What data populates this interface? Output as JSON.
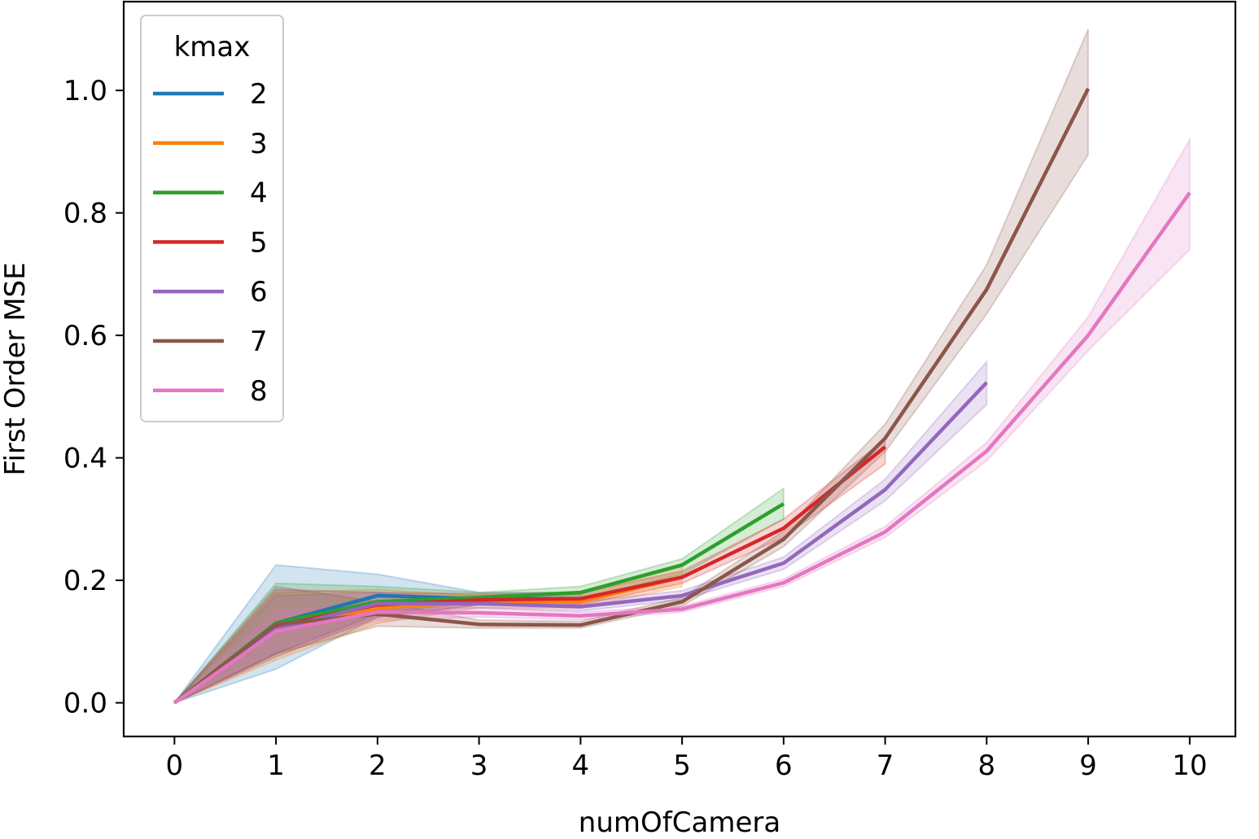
{
  "chart_data": {
    "type": "line",
    "xlabel": "numOfCamera",
    "ylabel": "First Order MSE",
    "xlim": [
      -0.5,
      10.45
    ],
    "ylim": [
      -0.055,
      1.145
    ],
    "xticks": [
      0,
      1,
      2,
      3,
      4,
      5,
      6,
      7,
      8,
      9,
      10
    ],
    "xtick_labels": [
      "0",
      "1",
      "2",
      "3",
      "4",
      "5",
      "6",
      "7",
      "8",
      "9",
      "10"
    ],
    "yticks": [
      0.0,
      0.2,
      0.4,
      0.6,
      0.8,
      1.0
    ],
    "ytick_labels": [
      "0.0",
      "0.2",
      "0.4",
      "0.6",
      "0.8",
      "1.0"
    ],
    "grid": false,
    "legend": {
      "title": "kmax",
      "placement": "top-left"
    },
    "series": [
      {
        "name": "2",
        "color": "#1f77b4",
        "x": [
          0,
          1,
          2,
          3,
          4
        ],
        "y": [
          0.0,
          0.13,
          0.175,
          0.17,
          0.17
        ],
        "ci_low": [
          0.0,
          0.055,
          0.14,
          0.16,
          0.16
        ],
        "ci_high": [
          0.0,
          0.225,
          0.21,
          0.18,
          0.18
        ]
      },
      {
        "name": "3",
        "color": "#ff7f0e",
        "x": [
          0,
          1,
          2,
          3,
          4,
          5
        ],
        "y": [
          0.0,
          0.12,
          0.155,
          0.165,
          0.165,
          0.205
        ],
        "ci_low": [
          0.0,
          0.07,
          0.13,
          0.155,
          0.155,
          0.19
        ],
        "ci_high": [
          0.0,
          0.18,
          0.185,
          0.175,
          0.18,
          0.225
        ]
      },
      {
        "name": "4",
        "color": "#2ca02c",
        "x": [
          0,
          1,
          2,
          3,
          4,
          5,
          6
        ],
        "y": [
          0.0,
          0.13,
          0.165,
          0.172,
          0.18,
          0.225,
          0.325
        ],
        "ci_low": [
          0.0,
          0.08,
          0.145,
          0.165,
          0.17,
          0.21,
          0.3
        ],
        "ci_high": [
          0.0,
          0.195,
          0.19,
          0.18,
          0.19,
          0.235,
          0.35
        ]
      },
      {
        "name": "5",
        "color": "#d62728",
        "x": [
          0,
          1,
          2,
          3,
          4,
          5,
          6,
          7
        ],
        "y": [
          0.0,
          0.125,
          0.16,
          0.168,
          0.17,
          0.205,
          0.285,
          0.418
        ],
        "ci_low": [
          0.0,
          0.075,
          0.14,
          0.16,
          0.16,
          0.195,
          0.27,
          0.39
        ],
        "ci_high": [
          0.0,
          0.185,
          0.18,
          0.178,
          0.18,
          0.215,
          0.3,
          0.43
        ]
      },
      {
        "name": "6",
        "color": "#9467bd",
        "x": [
          0,
          1,
          2,
          3,
          4,
          5,
          6,
          7,
          8
        ],
        "y": [
          0.0,
          0.12,
          0.162,
          0.162,
          0.157,
          0.175,
          0.228,
          0.348,
          0.523
        ],
        "ci_low": [
          0.0,
          0.08,
          0.145,
          0.155,
          0.15,
          0.168,
          0.218,
          0.33,
          0.487
        ],
        "ci_high": [
          0.0,
          0.175,
          0.18,
          0.17,
          0.165,
          0.183,
          0.238,
          0.365,
          0.557
        ]
      },
      {
        "name": "7",
        "color": "#8c564b",
        "x": [
          0,
          1,
          2,
          3,
          4,
          5,
          6,
          7,
          8,
          9
        ],
        "y": [
          0.0,
          0.128,
          0.145,
          0.128,
          0.127,
          0.165,
          0.267,
          0.432,
          0.675,
          1.003
        ],
        "ci_low": [
          0.0,
          0.08,
          0.125,
          0.122,
          0.122,
          0.158,
          0.255,
          0.41,
          0.635,
          0.895
        ],
        "ci_high": [
          0.0,
          0.19,
          0.165,
          0.135,
          0.133,
          0.172,
          0.28,
          0.455,
          0.715,
          1.1
        ]
      },
      {
        "name": "8",
        "color": "#e377c2",
        "x": [
          0,
          1,
          2,
          3,
          4,
          5,
          6,
          7,
          8,
          9,
          10
        ],
        "y": [
          0.0,
          0.117,
          0.148,
          0.147,
          0.142,
          0.153,
          0.196,
          0.279,
          0.411,
          0.6,
          0.833
        ],
        "ci_low": [
          0.0,
          0.085,
          0.135,
          0.14,
          0.136,
          0.148,
          0.19,
          0.27,
          0.395,
          0.575,
          0.74
        ],
        "ci_high": [
          0.0,
          0.15,
          0.162,
          0.155,
          0.148,
          0.158,
          0.202,
          0.288,
          0.425,
          0.63,
          0.92
        ]
      }
    ]
  }
}
